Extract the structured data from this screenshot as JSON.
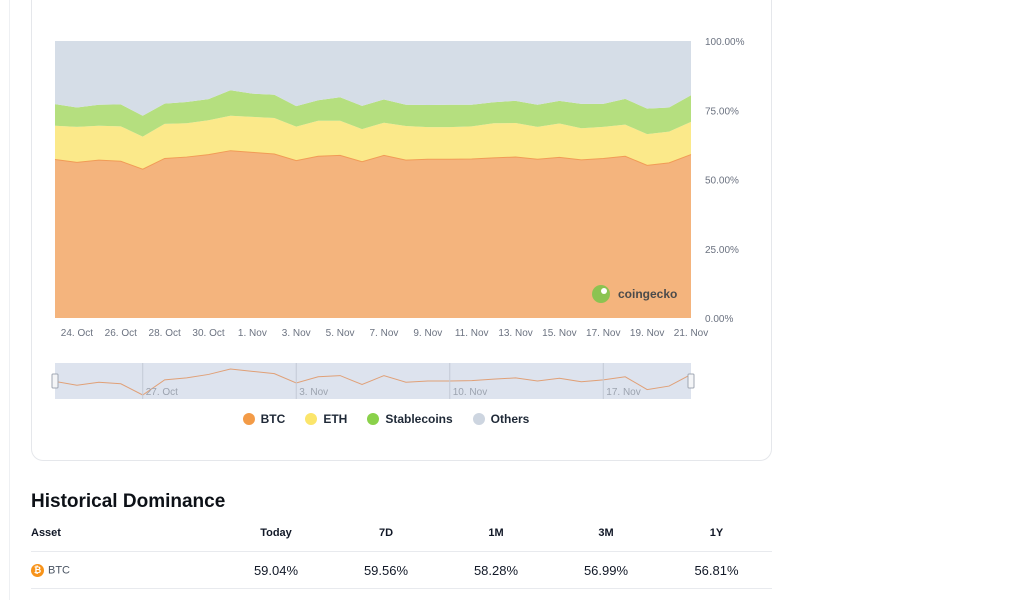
{
  "colors": {
    "btc": "#f4b47d",
    "btc_line": "#f19b56",
    "eth": "#fbe98a",
    "stablecoins": "#b5df7f",
    "others": "#d5dde7",
    "legend_btc": "#f39b47",
    "legend_eth": "#fbe56b",
    "legend_stablecoins": "#8ad14a",
    "legend_others": "#cdd5e0"
  },
  "chart": {
    "watermark": "coingecko",
    "y_ticks": [
      "100.00%",
      "75.00%",
      "50.00%",
      "25.00%",
      "0.00%"
    ],
    "x_ticks": [
      "24. Oct",
      "26. Oct",
      "28. Oct",
      "30. Oct",
      "1. Nov",
      "3. Nov",
      "5. Nov",
      "7. Nov",
      "9. Nov",
      "11. Nov",
      "13. Nov",
      "15. Nov",
      "17. Nov",
      "19. Nov",
      "21. Nov"
    ],
    "navigator_ticks": [
      "27. Oct",
      "3. Nov",
      "10. Nov",
      "17. Nov"
    ]
  },
  "chart_data": {
    "type": "area",
    "stacked": true,
    "x": [
      "23. Oct",
      "24. Oct",
      "25. Oct",
      "26. Oct",
      "27. Oct",
      "28. Oct",
      "29. Oct",
      "30. Oct",
      "31. Oct",
      "1. Nov",
      "2. Nov",
      "3. Nov",
      "4. Nov",
      "5. Nov",
      "6. Nov",
      "7. Nov",
      "8. Nov",
      "9. Nov",
      "10. Nov",
      "11. Nov",
      "12. Nov",
      "13. Nov",
      "14. Nov",
      "15. Nov",
      "16. Nov",
      "17. Nov",
      "18. Nov",
      "19. Nov",
      "20. Nov",
      "21. Nov"
    ],
    "ylim": [
      0,
      100
    ],
    "y_ticks": [
      "100.00%",
      "75.00%",
      "50.00%",
      "25.00%",
      "0.00%"
    ],
    "series": [
      {
        "name": "BTC",
        "values": [
          57.2,
          56.2,
          57.0,
          56.6,
          53.7,
          57.6,
          58.1,
          59.0,
          60.4,
          59.8,
          59.2,
          56.8,
          58.4,
          58.7,
          56.4,
          58.7,
          57.0,
          57.3,
          57.3,
          57.4,
          57.8,
          58.1,
          57.3,
          58.0,
          57.1,
          57.6,
          58.4,
          55.1,
          56.0,
          59.0
        ]
      },
      {
        "name": "ETH",
        "values": [
          12.2,
          12.8,
          12.4,
          12.6,
          11.8,
          12.5,
          12.2,
          12.4,
          12.6,
          12.8,
          13.0,
          12.3,
          12.8,
          12.5,
          11.8,
          11.8,
          12.3,
          11.6,
          11.6,
          11.8,
          12.5,
          12.3,
          11.7,
          12.2,
          11.4,
          11.4,
          11.4,
          11.3,
          11.3,
          11.8
        ]
      },
      {
        "name": "Stablecoins",
        "values": [
          7.8,
          7.0,
          7.6,
          7.9,
          7.5,
          7.3,
          7.7,
          7.6,
          9.2,
          8.4,
          8.4,
          7.4,
          7.4,
          8.5,
          8.4,
          8.4,
          7.7,
          8.0,
          8.1,
          7.8,
          7.6,
          8.0,
          8.0,
          8.2,
          8.8,
          8.3,
          9.3,
          9.2,
          8.7,
          9.6
        ]
      },
      {
        "name": "Others",
        "values": [
          22.8,
          24.0,
          23.0,
          22.9,
          27.0,
          22.6,
          22.0,
          21.0,
          17.8,
          19.0,
          19.4,
          23.5,
          21.4,
          20.3,
          23.4,
          21.1,
          23.0,
          23.1,
          23.0,
          23.0,
          22.1,
          21.6,
          23.0,
          21.6,
          22.7,
          22.7,
          20.9,
          24.4,
          24.0,
          19.6
        ]
      }
    ]
  },
  "legend": [
    {
      "label": "BTC",
      "color": "#f39b47"
    },
    {
      "label": "ETH",
      "color": "#fbe56b"
    },
    {
      "label": "Stablecoins",
      "color": "#8ad14a"
    },
    {
      "label": "Others",
      "color": "#cdd5e0"
    }
  ],
  "historical": {
    "title": "Historical Dominance",
    "headers": [
      "Asset",
      "Today",
      "7D",
      "1M",
      "3M",
      "1Y"
    ],
    "rows": [
      {
        "asset": "BTC",
        "icon": "bitcoin-icon",
        "today": "59.04%",
        "d7": "59.56%",
        "m1": "58.28%",
        "m3": "56.99%",
        "y1": "56.81%"
      }
    ]
  }
}
